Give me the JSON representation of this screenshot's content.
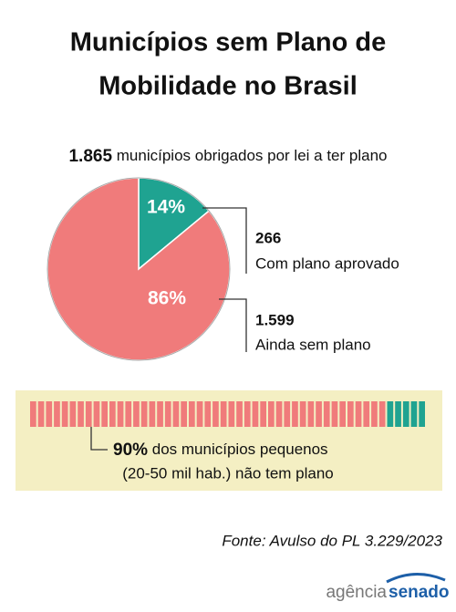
{
  "chart_data": [
    {
      "type": "pie",
      "title": [
        "Municípios sem Plano de",
        "Mobilidade no Brasil"
      ],
      "subtitle": {
        "value": 1865,
        "label": "1.865",
        "text": "municípios obrigados por lei a ter plano"
      },
      "values": [
        14,
        86
      ],
      "value_labels": [
        "14%",
        "86%"
      ],
      "colors": [
        "#1fa391",
        "#f07b7b"
      ],
      "annotations": [
        {
          "value": 266,
          "label": "266",
          "text": "Com plano aprovado"
        },
        {
          "value": 1599,
          "label": "1.599",
          "text": "Ainda sem plano"
        }
      ]
    },
    {
      "type": "stripe",
      "xlim": [
        0,
        100
      ],
      "value": 90,
      "value_label": "90%",
      "text": [
        "dos municípios pequenos",
        "(20-50 mil hab.) não tem plano"
      ],
      "colors": [
        "#f07b7b",
        "#1fa391"
      ],
      "source": "Fonte: Avulso do PL 3.229/2023",
      "logo": [
        "agência",
        "senado"
      ]
    }
  ]
}
